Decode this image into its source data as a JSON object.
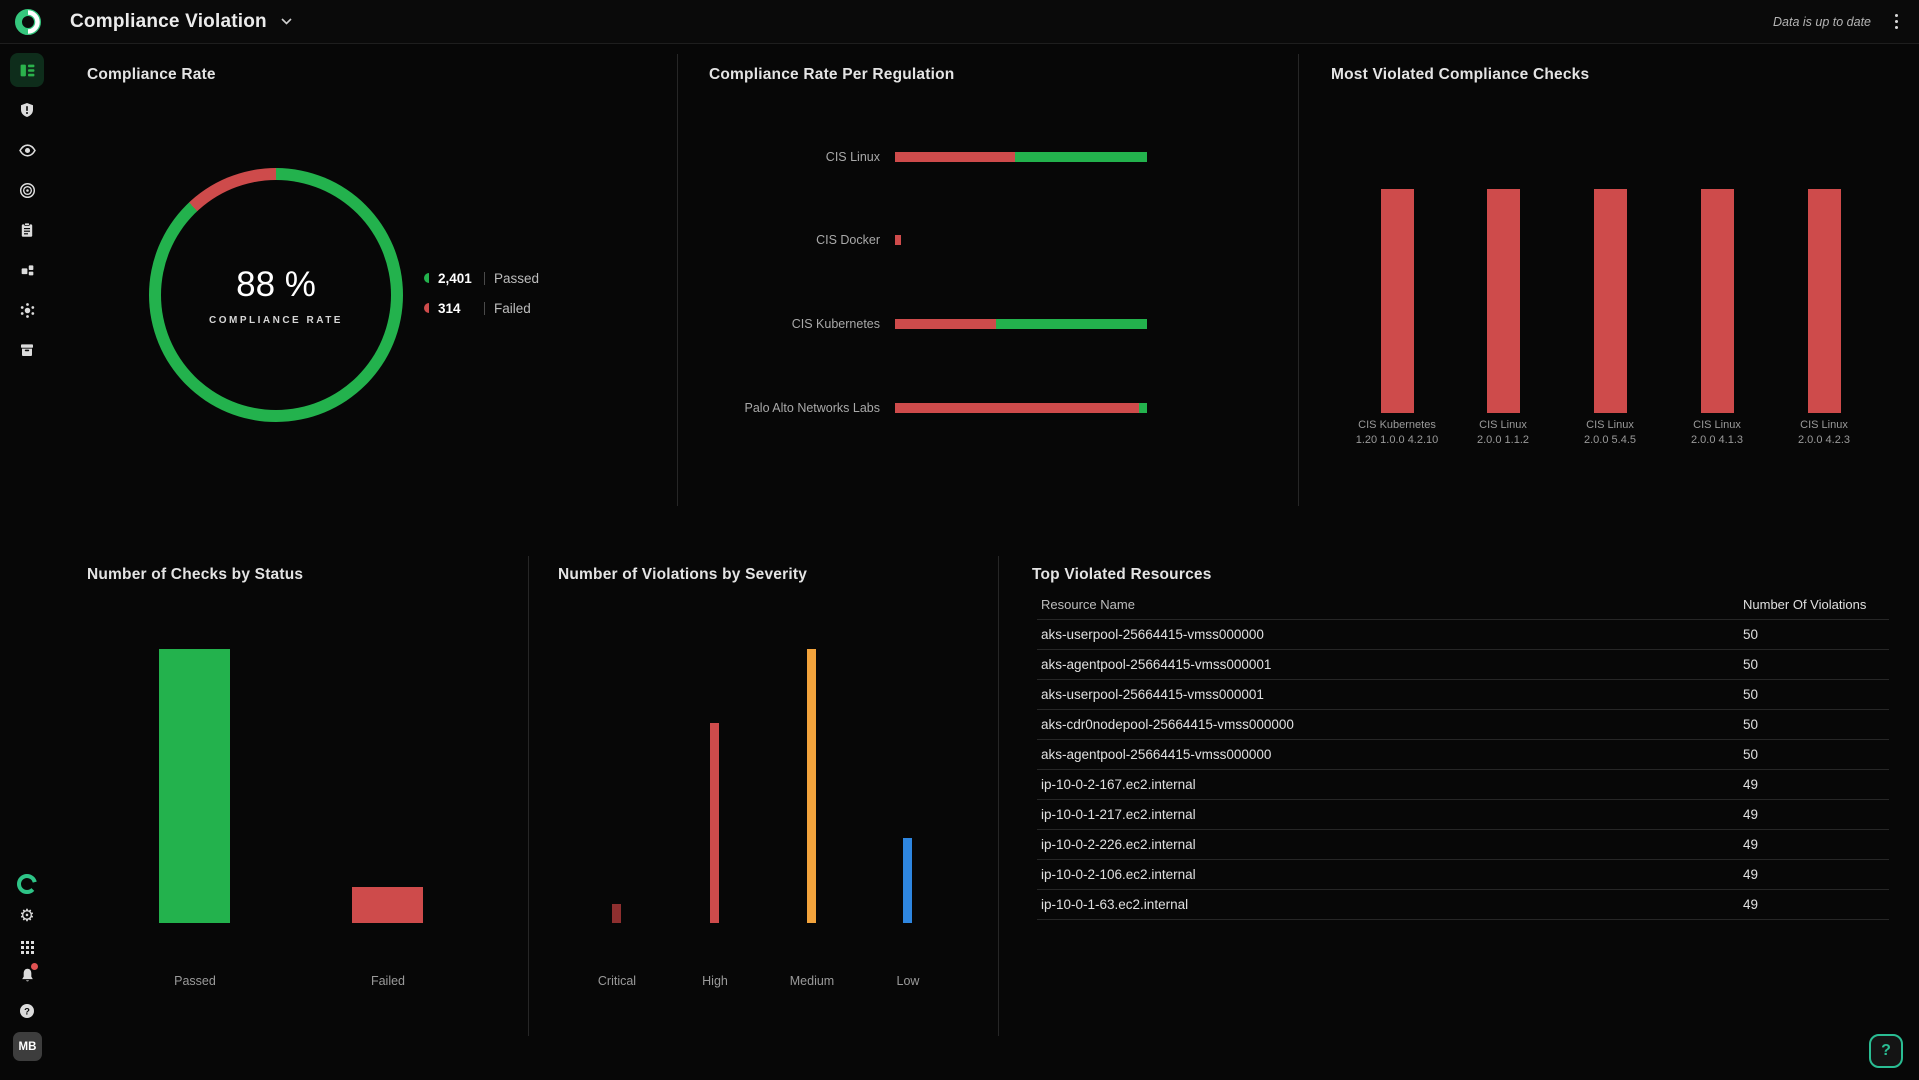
{
  "colors": {
    "green": "#23b24d",
    "red": "#ce4b4b",
    "dark_red": "#8e2f2f",
    "orange": "#f2a33c",
    "blue": "#2e86e0",
    "teal": "#2abd93",
    "active_icon_green": "#2bb24c"
  },
  "topbar": {
    "title": "Compliance Violation",
    "status_text": "Data is up to date"
  },
  "sidebar": {
    "avatar_initials": "MB"
  },
  "panels": {
    "compliance_rate": {
      "title": "Compliance Rate",
      "center_value": "88 %",
      "center_label": "COMPLIANCE RATE",
      "passed_pct": 88,
      "legend": [
        {
          "value": "2,401",
          "label": "Passed",
          "color": "green"
        },
        {
          "value": "314",
          "label": "Failed",
          "color": "red"
        }
      ]
    },
    "per_regulation": {
      "title": "Compliance Rate Per Regulation",
      "rows": [
        {
          "label": "CIS Linux",
          "failed_pct": 47.8,
          "passed_pct": 52.2
        },
        {
          "label": "CIS Docker",
          "failed_pct": 2.4,
          "passed_pct": 0
        },
        {
          "label": "CIS Kubernetes",
          "failed_pct": 40.2,
          "passed_pct": 59.8
        },
        {
          "label": "Palo Alto Networks Labs",
          "failed_pct": 96.9,
          "passed_pct": 3.1
        }
      ]
    },
    "most_violated": {
      "title": "Most Violated Compliance Checks",
      "bars": [
        {
          "label_line1": "CIS Kubernetes",
          "label_line2": "1.20 1.0.0 4.2.10",
          "height_pct": 100
        },
        {
          "label_line1": "CIS Linux",
          "label_line2": "2.0.0 1.1.2",
          "height_pct": 100
        },
        {
          "label_line1": "CIS Linux",
          "label_line2": "2.0.0 5.4.5",
          "height_pct": 100
        },
        {
          "label_line1": "CIS Linux",
          "label_line2": "2.0.0 4.1.3",
          "height_pct": 100
        },
        {
          "label_line1": "CIS Linux",
          "label_line2": "2.0.0 4.2.3",
          "height_pct": 100
        }
      ]
    },
    "checks_by_status": {
      "title": "Number of Checks by Status",
      "categories": [
        "Passed",
        "Failed"
      ],
      "values": [
        2401,
        314
      ],
      "max": 2401,
      "bar_colors": [
        "green",
        "red"
      ]
    },
    "violations_by_severity": {
      "title": "Number of Violations by Severity",
      "categories": [
        "Critical",
        "High",
        "Medium",
        "Low"
      ],
      "pct_of_max": [
        7,
        73,
        100,
        31
      ],
      "values_are_estimates": true,
      "bar_colors": [
        "dark_red",
        "red",
        "orange",
        "blue"
      ]
    },
    "top_violated_resources": {
      "title": "Top Violated Resources",
      "columns": {
        "name": "Resource Name",
        "violations": "Number Of Violations"
      },
      "rows": [
        {
          "name": "aks-userpool-25664415-vmss000000",
          "violations": "50"
        },
        {
          "name": "aks-agentpool-25664415-vmss000001",
          "violations": "50"
        },
        {
          "name": "aks-userpool-25664415-vmss000001",
          "violations": "50"
        },
        {
          "name": "aks-cdr0nodepool-25664415-vmss000000",
          "violations": "50"
        },
        {
          "name": "aks-agentpool-25664415-vmss000000",
          "violations": "50"
        },
        {
          "name": "ip-10-0-2-167.ec2.internal",
          "violations": "49"
        },
        {
          "name": "ip-10-0-1-217.ec2.internal",
          "violations": "49"
        },
        {
          "name": "ip-10-0-2-226.ec2.internal",
          "violations": "49"
        },
        {
          "name": "ip-10-0-2-106.ec2.internal",
          "violations": "49"
        },
        {
          "name": "ip-10-0-1-63.ec2.internal",
          "violations": "49"
        }
      ]
    }
  },
  "chart_data": [
    {
      "type": "pie",
      "title": "Compliance Rate",
      "categories": [
        "Passed",
        "Failed"
      ],
      "values": [
        2401,
        314
      ],
      "center_text": "88 % COMPLIANCE RATE",
      "legend_position": "right"
    },
    {
      "type": "bar",
      "title": "Compliance Rate Per Regulation",
      "orientation": "horizontal",
      "stacked": true,
      "categories": [
        "CIS Linux",
        "CIS Docker",
        "CIS Kubernetes",
        "Palo Alto Networks Labs"
      ],
      "series": [
        {
          "name": "Failed (pct of track, estimated)",
          "values": [
            47.8,
            2.4,
            40.2,
            96.9
          ]
        },
        {
          "name": "Passed (pct of track, estimated)",
          "values": [
            52.2,
            0,
            59.8,
            3.1
          ]
        }
      ],
      "values_are_estimates": true
    },
    {
      "type": "bar",
      "title": "Most Violated Compliance Checks",
      "categories": [
        "CIS Kubernetes 1.20 1.0.0 4.2.10",
        "CIS Linux 2.0.0 1.1.2",
        "CIS Linux 2.0.0 5.4.5",
        "CIS Linux 2.0.0 4.1.3",
        "CIS Linux 2.0.0 4.2.3"
      ],
      "values": [
        100,
        100,
        100,
        100,
        100
      ],
      "values_are_estimates": true,
      "note": "five equal-height red bars, no value labels shown"
    },
    {
      "type": "bar",
      "title": "Number of Checks by Status",
      "categories": [
        "Passed",
        "Failed"
      ],
      "values": [
        2401,
        314
      ]
    },
    {
      "type": "bar",
      "title": "Number of Violations by Severity",
      "categories": [
        "Critical",
        "High",
        "Medium",
        "Low"
      ],
      "values": [
        7,
        73,
        100,
        31
      ],
      "values_are_estimates": true,
      "note": "relative heights in percent of tallest bar; no value labels shown"
    },
    {
      "type": "table",
      "title": "Top Violated Resources",
      "columns": [
        "Resource Name",
        "Number Of Violations"
      ],
      "rows": [
        [
          "aks-userpool-25664415-vmss000000",
          50
        ],
        [
          "aks-agentpool-25664415-vmss000001",
          50
        ],
        [
          "aks-userpool-25664415-vmss000001",
          50
        ],
        [
          "aks-cdr0nodepool-25664415-vmss000000",
          50
        ],
        [
          "aks-agentpool-25664415-vmss000000",
          50
        ],
        [
          "ip-10-0-2-167.ec2.internal",
          49
        ],
        [
          "ip-10-0-1-217.ec2.internal",
          49
        ],
        [
          "ip-10-0-2-226.ec2.internal",
          49
        ],
        [
          "ip-10-0-2-106.ec2.internal",
          49
        ],
        [
          "ip-10-0-1-63.ec2.internal",
          49
        ]
      ]
    }
  ]
}
